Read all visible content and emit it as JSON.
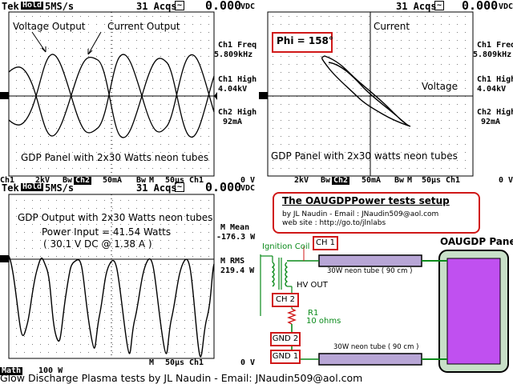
{
  "top_left": {
    "header": {
      "brand": "Tek",
      "mode": "Hold",
      "rate": "5MS/s",
      "acqs": "31 Acqs",
      "voltage": "0.000",
      "unit": "VDC"
    },
    "labels": {
      "voltage_output": "Voltage Output",
      "current_output": "Current Output"
    },
    "readouts": {
      "freq_label": "Ch1 Freq",
      "freq_value": "5.809kHz",
      "high1_label": "Ch1 High",
      "high1_value": "4.04kV",
      "high2_label": "Ch2 High",
      "high2_value": "92mA"
    },
    "caption": "GDP Panel with 2x30 Watts neon tubes",
    "footer": {
      "ch1": "Ch1",
      "ch1_scale": "2kV",
      "bw": "Bw",
      "ch2": "Ch2",
      "ch2_scale": "50mA",
      "bw2": "Bw",
      "m": "M",
      "timebase": "50μs",
      "trig": "Ch1",
      "level": "0 V"
    }
  },
  "top_right": {
    "header": {
      "acqs": "31 Acqs",
      "voltage": "0.000",
      "unit": "VDC"
    },
    "phi": "Phi = 158°",
    "labels": {
      "current": "Current",
      "voltage": "Voltage"
    },
    "readouts": {
      "freq_label": "Ch1 Freq",
      "freq_value": "5.809kHz",
      "high1_label": "Ch1 High",
      "high1_value": "4.04kV",
      "high2_label": "Ch2 High",
      "high2_value": "92mA"
    },
    "caption": "GDP Panel with 2x30 watts neon tubes",
    "footer": {
      "ch1_scale": "2kV",
      "bw": "Bw",
      "ch2": "Ch2",
      "ch2_scale": "50mA",
      "bw2": "Bw",
      "m": "M",
      "timebase": "50μs",
      "trig": "Ch1",
      "level": "0 V"
    }
  },
  "bottom_left": {
    "header": {
      "brand": "Tek",
      "mode": "Hold",
      "rate": "5MS/s",
      "acqs": "31 Acqs",
      "voltage": "0.000",
      "unit": "VDC"
    },
    "caption": "GDP Output with 2x30 Watts neon tubes",
    "power": "Power Input = 41.54 Watts",
    "power_detail": "( 30.1 V DC @ 1.38 A )",
    "readouts": {
      "mean_label": "M Mean",
      "mean_value": "-176.3 W",
      "rms_label": "M RMS",
      "rms_value": "219.4 W"
    },
    "footer": {
      "m": "M",
      "timebase": "50μs",
      "trig": "Ch1",
      "level": "0 V"
    },
    "math": "Math",
    "math_scale": "100 W"
  },
  "setup": {
    "title": "The OAUGDPPower tests setup",
    "author": "by JL Naudin - Email : JNaudin509@aol.com",
    "website": "web site :   http://go.to/jlnlabs",
    "panel_title": "OAUGDP Panel",
    "ignition": "Ignition Coil",
    "hv_out": "HV OUT",
    "r1": "R1",
    "r1_value": "10 ohms",
    "ch1": "CH 1",
    "ch2": "CH 2",
    "gnd2": "GND 2",
    "gnd1": "GND 1",
    "tube_top": "30W neon tube ( 90 cm )",
    "tube_bottom": "30W neon tube ( 90 cm )",
    "colors": {
      "red": "#d01818",
      "green": "#0a8a1a",
      "tube": "#b8a6d6",
      "panel": "#c050f0",
      "panel_frame": "#c8e0c8"
    }
  },
  "footer_text": "Glow Discharge Plasma tests by JL Naudin - Email: JNaudin509@aol.com"
}
